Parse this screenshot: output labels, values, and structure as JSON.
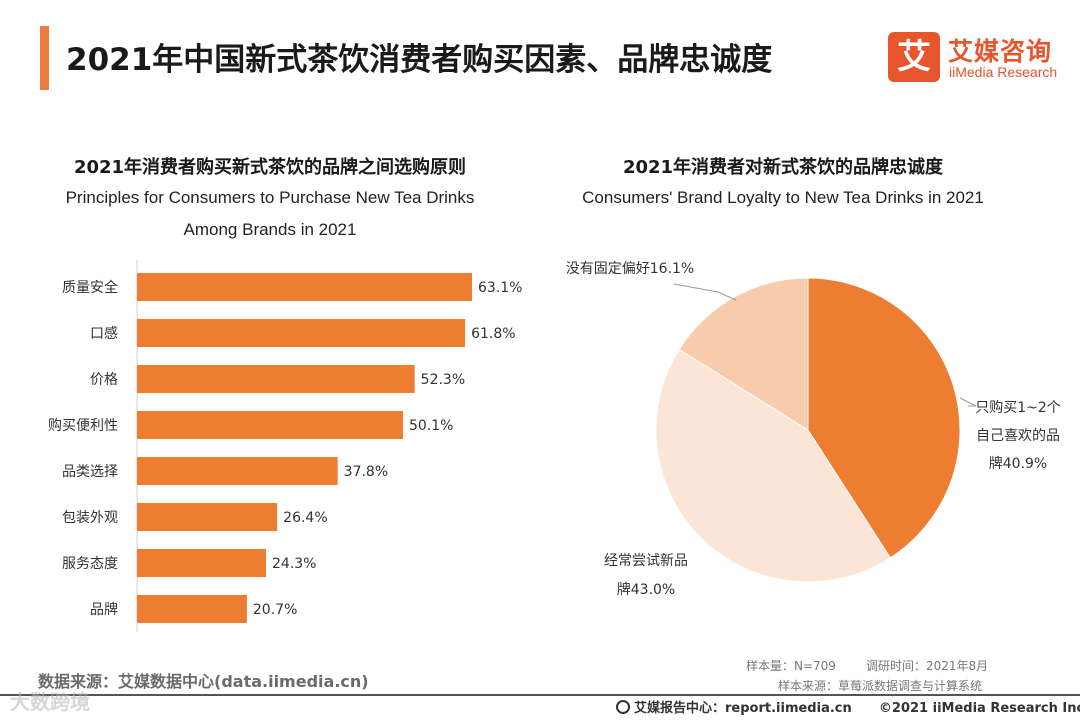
{
  "header": {
    "title": "2021年中国新式茶饮消费者购买因素、品牌忠诚度",
    "logo_mark": "艾",
    "logo_cn": "艾媒咨询",
    "logo_en": "iiMedia Research",
    "accent_color": "#f07b3f",
    "logo_color": "#e8542b"
  },
  "chart_data": [
    {
      "type": "bar",
      "orientation": "horizontal",
      "title_cn": "2021年消费者购买新式茶饮的品牌之间选购原则",
      "title_en_line1": "Principles for Consumers to Purchase New Tea Drinks",
      "title_en_line2": "Among Brands in 2021",
      "categories": [
        "质量安全",
        "口感",
        "价格",
        "购买便利性",
        "品类选择",
        "包装外观",
        "服务态度",
        "品牌"
      ],
      "values": [
        63.1,
        61.8,
        52.3,
        50.1,
        37.8,
        26.4,
        24.3,
        20.7
      ],
      "value_labels": [
        "63.1%",
        "61.8%",
        "52.3%",
        "50.1%",
        "37.8%",
        "26.4%",
        "24.3%",
        "20.7%"
      ],
      "unit": "%",
      "color": "#ed7d31",
      "xlim": [
        0,
        70
      ]
    },
    {
      "type": "pie",
      "title_cn": "2021年消费者对新式茶饮的品牌忠诚度",
      "title_en": "Consumers' Brand Loyalty to New Tea Drinks in 2021",
      "slices": [
        {
          "label_lines": [
            "只购买1~2个",
            "自己喜欢的品",
            "牌40.9%"
          ],
          "value": 40.9,
          "color": "#ed7d31"
        },
        {
          "label_lines": [
            "经常尝试新品",
            "牌43.0%"
          ],
          "value": 43.0,
          "color": "#fbe5d6"
        },
        {
          "label_lines": [
            "没有固定偏好16.1%"
          ],
          "value": 16.1,
          "color": "#f8cbad"
        }
      ]
    }
  ],
  "footer": {
    "source": "数据来源：艾媒数据中心(data.iimedia.cn)",
    "sample_size": "样本量：N=709",
    "survey_time": "调研时间：2021年8月",
    "sample_source": "样本来源：草莓派数据调查与计算系统",
    "report_center": "艾媒报告中心：report.iimedia.cn",
    "copyright": "©2021  iiMedia Research  Inc",
    "watermark": "大数跨境"
  }
}
